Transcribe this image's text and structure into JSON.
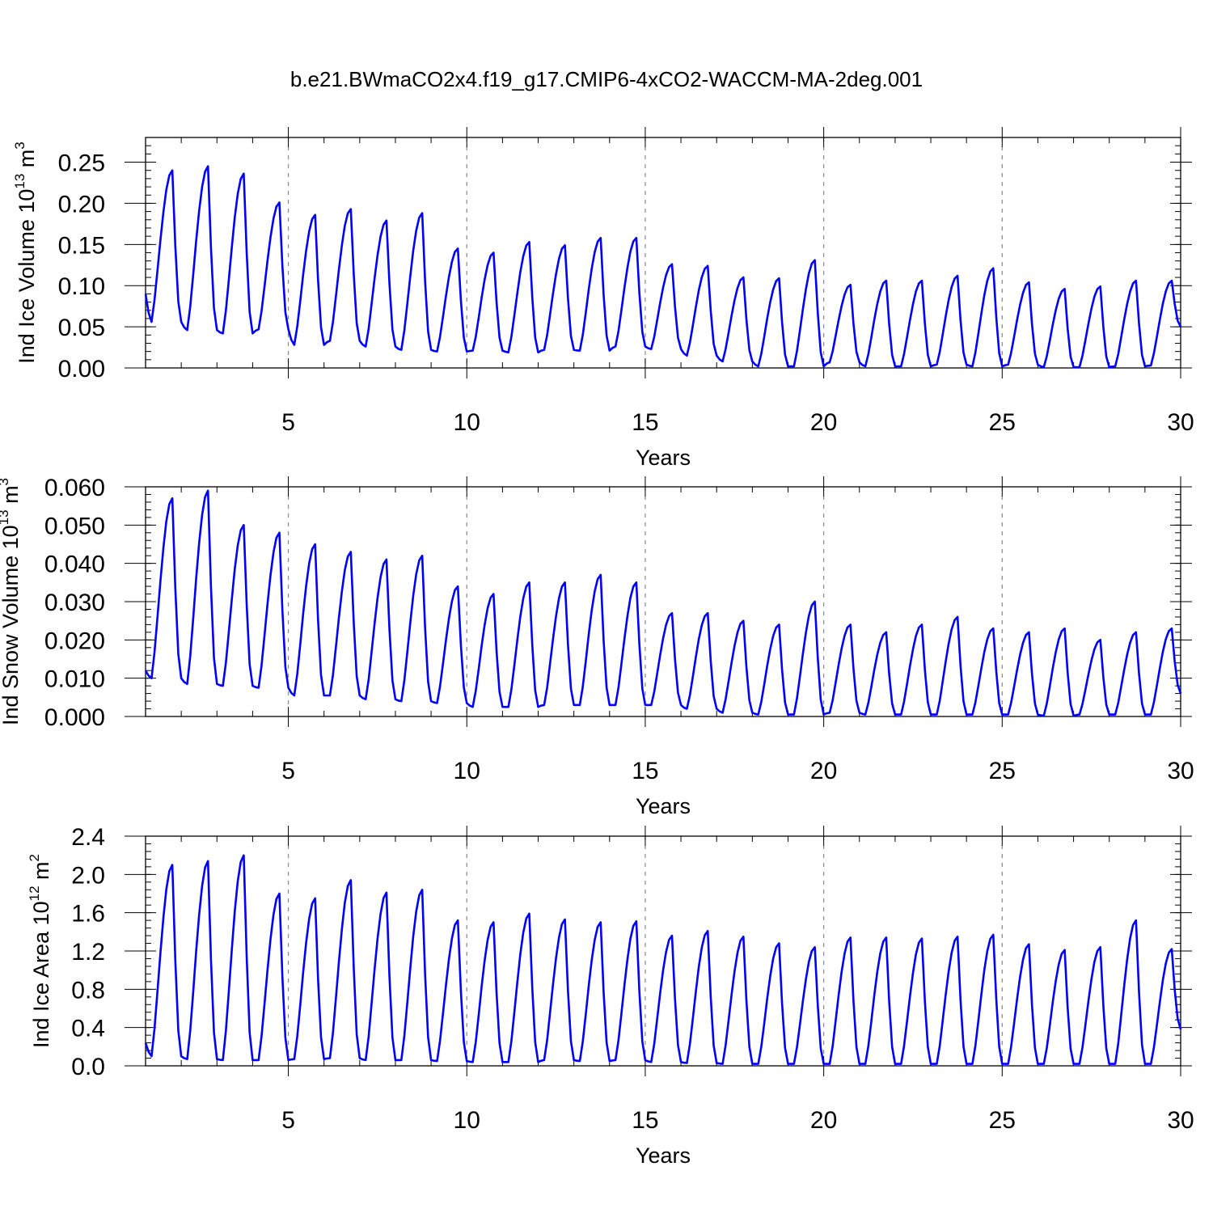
{
  "title": "b.e21.BWmaCO2x4.f19_g17.CMIP6-4xCO2-WACCM-MA-2deg.001",
  "chart_data": [
    {
      "type": "line",
      "name": "ice-volume",
      "title": "b.e21.BWmaCO2x4.f19_g17.CMIP6-4xCO2-WACCM-MA-2deg.001",
      "xlabel": "Years",
      "ylabel": {
        "text": "Ind Ice Volume 10",
        "exp": "13",
        "unit": " m",
        "unit_exp": "3"
      },
      "xlim": [
        1,
        30
      ],
      "ylim": [
        0,
        0.28
      ],
      "xticks": [
        5,
        10,
        15,
        20,
        25,
        30
      ],
      "yticks": [
        "0.00",
        "0.05",
        "0.10",
        "0.15",
        "0.20",
        "0.25"
      ],
      "ytick_values": [
        0,
        0.05,
        0.1,
        0.15,
        0.2,
        0.25
      ],
      "grid": "dashed vertical at 5-year marks",
      "color": "#0000ff",
      "start": 0.09,
      "peaks": [
        0.24,
        0.245,
        0.236,
        0.201,
        0.186,
        0.193,
        0.179,
        0.188,
        0.145,
        0.14,
        0.153,
        0.149,
        0.158,
        0.158,
        0.126,
        0.124,
        0.11,
        0.109,
        0.131,
        0.101,
        0.106,
        0.106,
        0.112,
        0.121,
        0.104,
        0.096,
        0.099,
        0.106,
        0.106
      ],
      "troughs": [
        0.056,
        0.046,
        0.042,
        0.047,
        0.028,
        0.033,
        0.026,
        0.022,
        0.02,
        0.021,
        0.019,
        0.022,
        0.021,
        0.026,
        0.023,
        0.015,
        0.008,
        0.002,
        0.002,
        0.007,
        0.002,
        0.002,
        0.004,
        0.002,
        0.004,
        0.001,
        0.001,
        0.002,
        0.003
      ],
      "end": 0.05
    },
    {
      "type": "line",
      "name": "snow-volume",
      "xlabel": "Years",
      "ylabel": {
        "text": "Ind Snow Volume 10",
        "exp": "13",
        "unit": " m",
        "unit_exp": "3"
      },
      "xlim": [
        1,
        30
      ],
      "ylim": [
        0,
        0.06
      ],
      "xticks": [
        5,
        10,
        15,
        20,
        25,
        30
      ],
      "yticks": [
        "0.000",
        "0.010",
        "0.020",
        "0.030",
        "0.040",
        "0.050",
        "0.060"
      ],
      "ytick_values": [
        0,
        0.01,
        0.02,
        0.03,
        0.04,
        0.05,
        0.06
      ],
      "grid": "dashed vertical at 5-year marks",
      "color": "#0000ff",
      "start": 0.012,
      "peaks": [
        0.057,
        0.059,
        0.05,
        0.048,
        0.045,
        0.043,
        0.041,
        0.042,
        0.034,
        0.032,
        0.035,
        0.035,
        0.037,
        0.035,
        0.027,
        0.027,
        0.025,
        0.024,
        0.03,
        0.024,
        0.022,
        0.024,
        0.026,
        0.023,
        0.022,
        0.023,
        0.02,
        0.022,
        0.023
      ],
      "troughs": [
        0.01,
        0.0085,
        0.008,
        0.0075,
        0.0055,
        0.0055,
        0.0045,
        0.004,
        0.0035,
        0.0025,
        0.0025,
        0.003,
        0.003,
        0.003,
        0.003,
        0.002,
        0.001,
        0.0005,
        0.0005,
        0.001,
        0.0005,
        0.0005,
        0.0005,
        0.0005,
        0.0005,
        0.0002,
        0.0005,
        0.0005,
        0.0005
      ],
      "end": 0.006
    },
    {
      "type": "line",
      "name": "ice-area",
      "xlabel": "Years",
      "ylabel": {
        "text": "Ind Ice Area 10",
        "exp": "12",
        "unit": " m",
        "unit_exp": "2"
      },
      "xlim": [
        1,
        30
      ],
      "ylim": [
        0,
        2.4
      ],
      "xticks": [
        5,
        10,
        15,
        20,
        25,
        30
      ],
      "yticks": [
        "0.0",
        "0.4",
        "0.8",
        "1.2",
        "1.6",
        "2.0",
        "2.4"
      ],
      "ytick_values": [
        0,
        0.4,
        0.8,
        1.2,
        1.6,
        2.0,
        2.4
      ],
      "grid": "dashed vertical at 5-year marks",
      "color": "#0000ff",
      "start": 0.24,
      "peaks": [
        2.1,
        2.14,
        2.2,
        1.8,
        1.75,
        1.94,
        1.81,
        1.84,
        1.52,
        1.5,
        1.59,
        1.53,
        1.5,
        1.51,
        1.36,
        1.41,
        1.35,
        1.28,
        1.24,
        1.34,
        1.34,
        1.33,
        1.35,
        1.37,
        1.27,
        1.21,
        1.24,
        1.52,
        1.22
      ],
      "troughs": [
        0.1,
        0.07,
        0.06,
        0.06,
        0.07,
        0.08,
        0.06,
        0.06,
        0.05,
        0.04,
        0.04,
        0.06,
        0.05,
        0.06,
        0.04,
        0.03,
        0.02,
        0.02,
        0.02,
        0.02,
        0.02,
        0.02,
        0.02,
        0.02,
        0.02,
        0.02,
        0.02,
        0.02,
        0.02
      ],
      "end": 0.38
    }
  ]
}
